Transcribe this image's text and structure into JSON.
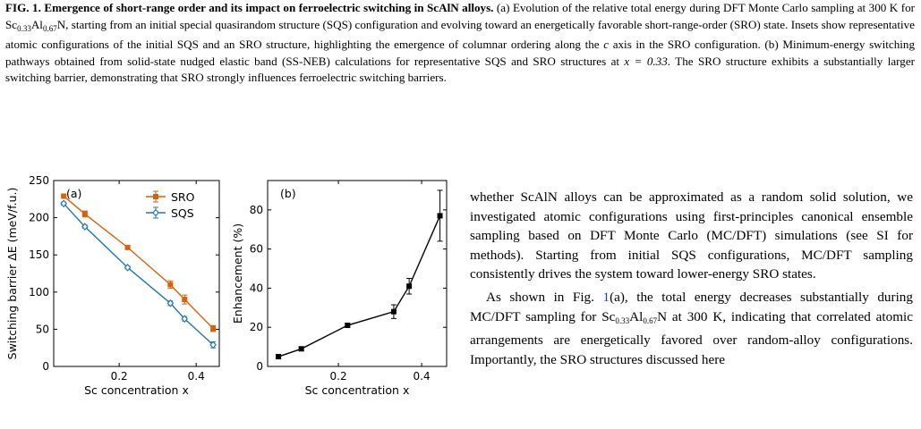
{
  "caption": {
    "heading": "FIG. 1. Emergence of short-range order and its impact on ferroelectric switching in ScAlN alloys.",
    "p1": " (a) Evolution of the relative total energy during DFT Monte Carlo sampling at 300 K for Sc",
    "p1_sub1": "0.33",
    "p1_mid": "Al",
    "p1_sub2": "0.67",
    "p1_end": "N, starting from an initial special quasirandom structure (SQS) configuration and evolving toward an energetically favorable short-range-order (SRO) state. Insets show representative atomic configurations of the initial SQS and an SRO structure, highlighting the emergence of columnar ordering along the ",
    "p1_axis": "c",
    "p1_end2": " axis in the SRO configuration. (b) Minimum-energy switching pathways obtained from solid-state nudged elastic band (SS-NEB) calculations for representative SQS and SRO structures at ",
    "p1_x": "x = 0.33",
    "p1_end3": ". The SRO structure exhibits a substantially larger switching barrier, demonstrating that SRO strongly influences ferroelectric switching barriers."
  },
  "body": {
    "para1": "whether ScAlN alloys can be approximated as a random solid solution, we investigated atomic configurations using first-principles canonical ensemble sampling based on DFT Monte Carlo (MC/DFT) simulations (see SI for methods). Starting from initial SQS configurations, MC/DFT sampling consistently drives the system toward lower-energy SRO states.",
    "para2_a": "As shown in Fig. ",
    "para2_ref": "1",
    "para2_b": "(a), the total energy decreases substantially during MC/DFT sampling for Sc",
    "para2_sub1": "0.33",
    "para2_mid": "Al",
    "para2_sub2": "0.67",
    "para2_c": "N at 300 K, indicating that correlated atomic arrangements are energetically favored over random-alloy configurations. Importantly, the SRO structures discussed here"
  },
  "chart_data": [
    {
      "type": "line",
      "panel_label": "(a)",
      "xlabel": "Sc concentration x",
      "ylabel": "Switching barrier ΔE (meV/f.u.)",
      "xlim": [
        0.03,
        0.46
      ],
      "ylim": [
        0,
        250
      ],
      "xticks": [
        0.2,
        0.4
      ],
      "yticks": [
        0,
        50,
        100,
        150,
        200,
        250
      ],
      "legend_position": "top-right",
      "series": [
        {
          "name": "SRO",
          "color": "#d9610a",
          "marker": "filled-square",
          "x": [
            0.056,
            0.111,
            0.222,
            0.333,
            0.37,
            0.444
          ],
          "y": [
            229,
            205,
            160,
            110,
            90,
            51
          ],
          "err": [
            2,
            4,
            2,
            5,
            6,
            4
          ]
        },
        {
          "name": "SQS",
          "color": "#2378b5",
          "marker": "open-diamond",
          "x": [
            0.056,
            0.111,
            0.222,
            0.333,
            0.37,
            0.444
          ],
          "y": [
            219,
            188,
            133,
            85,
            64,
            29
          ],
          "err": [
            2,
            2,
            2,
            3,
            3,
            4
          ]
        }
      ]
    },
    {
      "type": "line",
      "panel_label": "(b)",
      "xlabel": "Sc concentration x",
      "ylabel": "Enhancement (%)",
      "xlim": [
        0.03,
        0.46
      ],
      "ylim": [
        0,
        95
      ],
      "xticks": [
        0.2,
        0.4
      ],
      "yticks": [
        0,
        20,
        40,
        60,
        80
      ],
      "series": [
        {
          "color": "#000000",
          "marker": "filled-square",
          "x": [
            0.056,
            0.111,
            0.222,
            0.333,
            0.37,
            0.444
          ],
          "y": [
            5,
            9,
            21,
            28,
            41,
            77
          ],
          "err": [
            1,
            1,
            1,
            3.5,
            4,
            13
          ]
        }
      ]
    }
  ]
}
